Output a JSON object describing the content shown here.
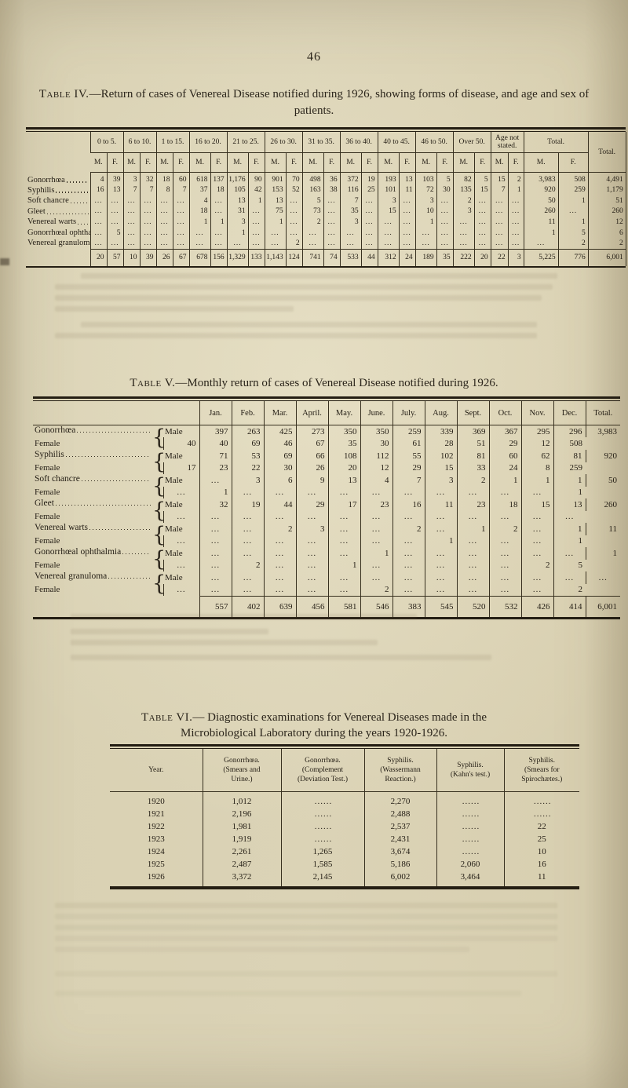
{
  "page": {
    "number": "46"
  },
  "table4": {
    "title_caps": "Table IV.",
    "title_rest": "—Return of cases of Venereal Disease notified during 1926, showing forms of disease, and age and sex of patients.",
    "age_groups": [
      "0 to 5.",
      "6 to 10.",
      "1 to 15.",
      "16 to 20.",
      "21 to 25.",
      "26 to 30.",
      "31 to 35.",
      "36 to 40.",
      "40 to 45.",
      "46 to 50.",
      "Over 50.",
      "Age not stated.",
      "Total."
    ],
    "sex_headers": [
      "M.",
      "F."
    ],
    "grand_total_header": "Total.",
    "rows": [
      {
        "label": "Gonorrhœa",
        "cells": [
          "4",
          "39",
          "3",
          "32",
          "18",
          "60",
          "618",
          "137",
          "1,176",
          "90",
          "901",
          "70",
          "498",
          "36",
          "372",
          "19",
          "193",
          "13",
          "103",
          "5",
          "82",
          "5",
          "15",
          "2",
          "3,983",
          "508"
        ],
        "total": "4,491"
      },
      {
        "label": "Syphilis",
        "cells": [
          "16",
          "13",
          "7",
          "7",
          "8",
          "7",
          "37",
          "18",
          "105",
          "42",
          "153",
          "52",
          "163",
          "38",
          "116",
          "25",
          "101",
          "11",
          "72",
          "30",
          "135",
          "15",
          "7",
          "1",
          "920",
          "259"
        ],
        "total": "1,179"
      },
      {
        "label": "Soft chancre",
        "cells": [
          "...",
          "...",
          "...",
          "...",
          "...",
          "...",
          "4",
          "...",
          "13",
          "1",
          "13",
          "...",
          "5",
          "...",
          "7",
          "...",
          "3",
          "...",
          "3",
          "...",
          "2",
          "...",
          "...",
          "...",
          "50",
          "1"
        ],
        "total": "51"
      },
      {
        "label": "Gleet",
        "cells": [
          "...",
          "...",
          "...",
          "...",
          "...",
          "...",
          "18",
          "...",
          "31",
          "...",
          "75",
          "...",
          "73",
          "...",
          "35",
          "...",
          "15",
          "...",
          "10",
          "...",
          "3",
          "...",
          "...",
          "...",
          "260",
          "..."
        ],
        "total": "260"
      },
      {
        "label": "Venereal warts",
        "cells": [
          "...",
          "...",
          "...",
          "...",
          "...",
          "...",
          "1",
          "1",
          "3",
          "...",
          "1",
          "...",
          "2",
          "...",
          "3",
          "...",
          "...",
          "...",
          "1",
          "...",
          "...",
          "...",
          "...",
          "...",
          "11",
          "1"
        ],
        "total": "12"
      },
      {
        "label": "Gonorrhœal ophthalmia",
        "cells": [
          "...",
          "5",
          "...",
          "...",
          "...",
          "...",
          "...",
          "...",
          "1",
          "...",
          "...",
          "...",
          "...",
          "...",
          "...",
          "...",
          "...",
          "...",
          "...",
          "...",
          "...",
          "...",
          "...",
          "...",
          "1",
          "5"
        ],
        "total": "6"
      },
      {
        "label": "Venereal granuloma",
        "cells": [
          "...",
          "...",
          "...",
          "...",
          "...",
          "...",
          "...",
          "...",
          "...",
          "...",
          "...",
          "2",
          "...",
          "...",
          "...",
          "...",
          "...",
          "...",
          "...",
          "...",
          "...",
          "...",
          "...",
          "...",
          "...",
          "2"
        ],
        "total": "2"
      }
    ],
    "totals_cells": [
      "20",
      "57",
      "10",
      "39",
      "26",
      "67",
      "678",
      "156",
      "1,329",
      "133",
      "1,143",
      "124",
      "741",
      "74",
      "533",
      "44",
      "312",
      "24",
      "189",
      "35",
      "222",
      "20",
      "22",
      "3",
      "5,225",
      "776"
    ],
    "totals_total": "6,001"
  },
  "table5": {
    "title_caps": "Table V.",
    "title_rest": "—Monthly return of cases of Venereal Disease notified during 1926.",
    "months": [
      "Jan.",
      "Feb.",
      "Mar.",
      "April.",
      "May.",
      "June.",
      "July.",
      "Aug.",
      "Sept.",
      "Oct.",
      "Nov.",
      "Dec.",
      "Total."
    ],
    "male_label": "Male",
    "female_label": "Female",
    "brace": "{",
    "rows": [
      {
        "label": "Gonorrhœa",
        "male": [
          "397",
          "263",
          "425",
          "273",
          "350",
          "350",
          "259",
          "339",
          "369",
          "367",
          "295",
          "296",
          "3,983"
        ],
        "female": [
          "40",
          "40",
          "69",
          "46",
          "67",
          "35",
          "30",
          "61",
          "28",
          "51",
          "29",
          "12",
          "508"
        ]
      },
      {
        "label": "Syphilis",
        "male": [
          "71",
          "53",
          "69",
          "66",
          "108",
          "112",
          "55",
          "102",
          "81",
          "60",
          "62",
          "81",
          "920"
        ],
        "female": [
          "17",
          "23",
          "22",
          "30",
          "26",
          "20",
          "12",
          "29",
          "15",
          "33",
          "24",
          "8",
          "259"
        ]
      },
      {
        "label": "Soft chancre",
        "male": [
          "...",
          "3",
          "6",
          "9",
          "13",
          "4",
          "7",
          "3",
          "2",
          "1",
          "1",
          "1",
          "50"
        ],
        "female": [
          "...",
          "1",
          "...",
          "...",
          "...",
          "...",
          "...",
          "...",
          "...",
          "...",
          "...",
          "...",
          "1"
        ]
      },
      {
        "label": "Gleet",
        "male": [
          "32",
          "19",
          "44",
          "29",
          "17",
          "23",
          "16",
          "11",
          "23",
          "18",
          "15",
          "13",
          "260"
        ],
        "female": [
          "...",
          "...",
          "...",
          "...",
          "...",
          "...",
          "...",
          "...",
          "...",
          "...",
          "...",
          "...",
          "..."
        ]
      },
      {
        "label": "Venereal warts",
        "male": [
          "...",
          "...",
          "2",
          "3",
          "...",
          "...",
          "2",
          "...",
          "1",
          "2",
          "...",
          "1",
          "11"
        ],
        "female": [
          "...",
          "...",
          "...",
          "...",
          "...",
          "...",
          "...",
          "...",
          "1",
          "...",
          "...",
          "...",
          "1"
        ]
      },
      {
        "label": "Gonorrhœal ophthalmia",
        "male": [
          "...",
          "...",
          "...",
          "...",
          "...",
          "1",
          "...",
          "...",
          "...",
          "...",
          "...",
          "...",
          "1"
        ],
        "female": [
          "...",
          "...",
          "2",
          "...",
          "...",
          "1",
          "...",
          "...",
          "...",
          "...",
          "...",
          "2",
          "5"
        ]
      },
      {
        "label": "Venereal granuloma",
        "male": [
          "...",
          "...",
          "...",
          "...",
          "...",
          "...",
          "...",
          "...",
          "...",
          "...",
          "...",
          "...",
          "..."
        ],
        "female": [
          "...",
          "...",
          "...",
          "...",
          "...",
          "...",
          "2",
          "...",
          "...",
          "...",
          "...",
          "...",
          "2"
        ]
      }
    ],
    "totals": [
      "557",
      "402",
      "639",
      "456",
      "581",
      "546",
      "383",
      "545",
      "520",
      "532",
      "426",
      "414",
      "6,001"
    ]
  },
  "table6": {
    "title_caps": "Table VI.",
    "title_line1_rest": "— Diagnostic examinations for Venereal Diseases made in the",
    "title_line2": "Microbiological Laboratory during the years 1920-1926.",
    "columns": [
      "Year.",
      "Gonorrhœa.\n(Smears and\nUrine.)",
      "Gonorrhœa.\n(Complement\n(Deviation Test.)",
      "Syphilis.\n(Wassermann\nReaction.)",
      "Syphilis.\n(Kahn's test.)",
      "Syphilis.\n(Smears for\nSpirochætes.)"
    ],
    "rows": [
      [
        "1920",
        "1,012",
        "......",
        "2,270",
        "......",
        "......"
      ],
      [
        "1921",
        "2,196",
        "......",
        "2,488",
        "......",
        "......"
      ],
      [
        "1922",
        "1,981",
        "......",
        "2,537",
        "......",
        "22"
      ],
      [
        "1923",
        "1,919",
        "......",
        "2,431",
        "......",
        "25"
      ],
      [
        "1924",
        "2,261",
        "1,265",
        "3,674",
        "......",
        "10"
      ],
      [
        "1925",
        "2,487",
        "1,585",
        "5,186",
        "2,060",
        "16"
      ],
      [
        "1926",
        "3,372",
        "2,145",
        "6,002",
        "3,464",
        "11"
      ]
    ]
  }
}
